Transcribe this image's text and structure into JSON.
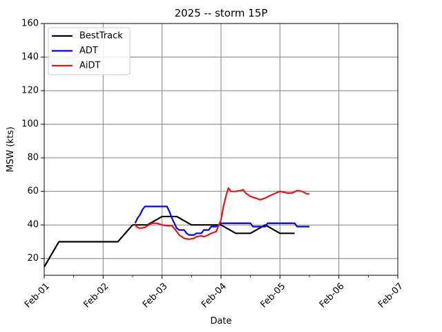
{
  "chart_data": {
    "type": "line",
    "title": "2025 -- storm 15P",
    "xlabel": "Date",
    "ylabel": "MSW (kts)",
    "x_ticks": [
      "Feb-01",
      "Feb-02",
      "Feb-03",
      "Feb-04",
      "Feb-05",
      "Feb-06",
      "Feb-07"
    ],
    "xlim": [
      "2025-02-01T00:00",
      "2025-02-07T00:00"
    ],
    "ylim": [
      10,
      160
    ],
    "y_ticks": [
      20,
      40,
      60,
      80,
      100,
      120,
      140,
      160
    ],
    "grid": true,
    "legend_position": "upper-left",
    "series": [
      {
        "name": "BestTrack",
        "color": "#000000",
        "points": [
          [
            "2025-02-01T00:00",
            15
          ],
          [
            "2025-02-01T06:00",
            30
          ],
          [
            "2025-02-01T12:00",
            30
          ],
          [
            "2025-02-01T18:00",
            30
          ],
          [
            "2025-02-02T00:00",
            30
          ],
          [
            "2025-02-02T06:00",
            30
          ],
          [
            "2025-02-02T12:00",
            40
          ],
          [
            "2025-02-02T18:00",
            40
          ],
          [
            "2025-02-03T00:00",
            45
          ],
          [
            "2025-02-03T06:00",
            45
          ],
          [
            "2025-02-03T12:00",
            40
          ],
          [
            "2025-02-03T18:00",
            40
          ],
          [
            "2025-02-04T00:00",
            40
          ],
          [
            "2025-02-04T06:00",
            35
          ],
          [
            "2025-02-04T12:00",
            35
          ],
          [
            "2025-02-04T18:00",
            40
          ],
          [
            "2025-02-05T00:00",
            35
          ],
          [
            "2025-02-05T06:00",
            35
          ]
        ]
      },
      {
        "name": "ADT",
        "color": "#0000ee",
        "points": [
          [
            "2025-02-02T13:00",
            41
          ],
          [
            "2025-02-02T14:00",
            44
          ],
          [
            "2025-02-02T15:00",
            46
          ],
          [
            "2025-02-02T16:00",
            49
          ],
          [
            "2025-02-02T17:00",
            51
          ],
          [
            "2025-02-02T20:00",
            51
          ],
          [
            "2025-02-03T00:00",
            51
          ],
          [
            "2025-02-03T02:00",
            51
          ],
          [
            "2025-02-03T03:00",
            48
          ],
          [
            "2025-02-03T04:00",
            44
          ],
          [
            "2025-02-03T05:00",
            41
          ],
          [
            "2025-02-03T06:00",
            38
          ],
          [
            "2025-02-03T07:00",
            37
          ],
          [
            "2025-02-03T09:00",
            37
          ],
          [
            "2025-02-03T10:00",
            35
          ],
          [
            "2025-02-03T11:00",
            34
          ],
          [
            "2025-02-03T13:00",
            34
          ],
          [
            "2025-02-03T14:00",
            35
          ],
          [
            "2025-02-03T16:00",
            35
          ],
          [
            "2025-02-03T17:00",
            37
          ],
          [
            "2025-02-03T19:00",
            37
          ],
          [
            "2025-02-03T20:00",
            39
          ],
          [
            "2025-02-03T22:00",
            39
          ],
          [
            "2025-02-03T23:00",
            40
          ],
          [
            "2025-02-04T00:00",
            41
          ],
          [
            "2025-02-04T06:00",
            41
          ],
          [
            "2025-02-04T12:00",
            41
          ],
          [
            "2025-02-04T13:00",
            39
          ],
          [
            "2025-02-04T18:00",
            39
          ],
          [
            "2025-02-04T19:00",
            41
          ],
          [
            "2025-02-05T00:00",
            41
          ],
          [
            "2025-02-05T06:00",
            41
          ],
          [
            "2025-02-05T07:00",
            39
          ],
          [
            "2025-02-05T12:00",
            39
          ]
        ]
      },
      {
        "name": "AiDT",
        "color": "#ee1111",
        "points": [
          [
            "2025-02-02T13:00",
            40
          ],
          [
            "2025-02-02T14:00",
            38.5
          ],
          [
            "2025-02-02T15:00",
            38
          ],
          [
            "2025-02-02T17:00",
            38.5
          ],
          [
            "2025-02-02T18:00",
            39.5
          ],
          [
            "2025-02-02T20:00",
            41
          ],
          [
            "2025-02-02T22:00",
            41
          ],
          [
            "2025-02-03T00:00",
            40
          ],
          [
            "2025-02-03T02:00",
            39.5
          ],
          [
            "2025-02-03T04:00",
            39.5
          ],
          [
            "2025-02-03T05:00",
            38
          ],
          [
            "2025-02-03T06:00",
            36
          ],
          [
            "2025-02-03T07:00",
            34
          ],
          [
            "2025-02-03T09:00",
            32
          ],
          [
            "2025-02-03T11:00",
            31.5
          ],
          [
            "2025-02-03T13:00",
            32
          ],
          [
            "2025-02-03T14:00",
            33
          ],
          [
            "2025-02-03T16:00",
            33.5
          ],
          [
            "2025-02-03T17:00",
            33
          ],
          [
            "2025-02-03T18:00",
            33.5
          ],
          [
            "2025-02-03T20:00",
            35
          ],
          [
            "2025-02-03T22:00",
            36
          ],
          [
            "2025-02-04T00:00",
            43
          ],
          [
            "2025-02-04T01:00",
            51
          ],
          [
            "2025-02-04T02:00",
            57
          ],
          [
            "2025-02-04T03:00",
            62
          ],
          [
            "2025-02-04T04:00",
            60
          ],
          [
            "2025-02-04T06:00",
            60
          ],
          [
            "2025-02-04T08:00",
            60.5
          ],
          [
            "2025-02-04T09:00",
            61
          ],
          [
            "2025-02-04T10:00",
            59
          ],
          [
            "2025-02-04T12:00",
            57
          ],
          [
            "2025-02-04T15:00",
            55.5
          ],
          [
            "2025-02-04T16:00",
            55
          ],
          [
            "2025-02-04T18:00",
            56
          ],
          [
            "2025-02-04T20:00",
            57.5
          ],
          [
            "2025-02-05T00:00",
            60
          ],
          [
            "2025-02-05T03:00",
            59
          ],
          [
            "2025-02-05T05:00",
            59
          ],
          [
            "2025-02-05T07:00",
            60.5
          ],
          [
            "2025-02-05T09:00",
            60
          ],
          [
            "2025-02-05T11:00",
            58.5
          ],
          [
            "2025-02-05T12:00",
            58.5
          ]
        ]
      }
    ]
  }
}
